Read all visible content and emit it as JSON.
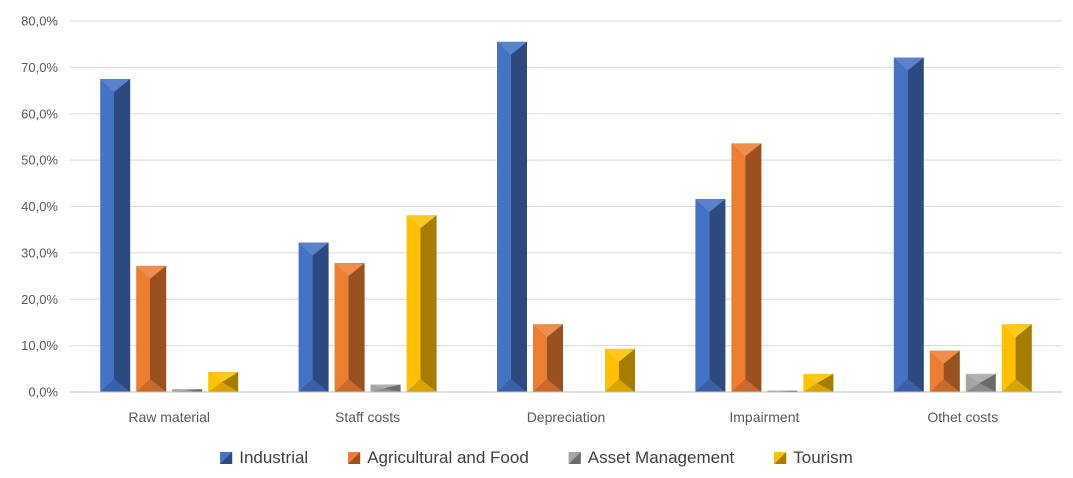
{
  "chart_data": {
    "type": "bar",
    "title": "",
    "xlabel": "",
    "ylabel": "",
    "categories": [
      "Raw material",
      "Staff costs",
      "Depreciation",
      "Impairment",
      "Othet costs"
    ],
    "series": [
      {
        "name": "Industrial",
        "values": [
          67.5,
          32.2,
          75.5,
          41.6,
          72.1
        ],
        "color": "#4472C4"
      },
      {
        "name": "Agricultural and Food",
        "values": [
          27.2,
          27.8,
          14.6,
          53.6,
          8.9
        ],
        "color": "#ED7D31"
      },
      {
        "name": "Asset Management",
        "values": [
          0.6,
          1.6,
          0.1,
          0.3,
          3.9
        ],
        "color": "#A5A5A5"
      },
      {
        "name": "Tourism",
        "values": [
          4.3,
          38.1,
          9.3,
          3.9,
          14.6
        ],
        "color": "#FFC000"
      }
    ],
    "ylim": [
      0,
      80
    ],
    "yticks": [
      "0,0%",
      "10,0%",
      "20,0%",
      "30,0%",
      "40,0%",
      "50,0%",
      "60,0%",
      "70,0%",
      "80,0%"
    ],
    "grid": true,
    "legend": "bottom"
  }
}
